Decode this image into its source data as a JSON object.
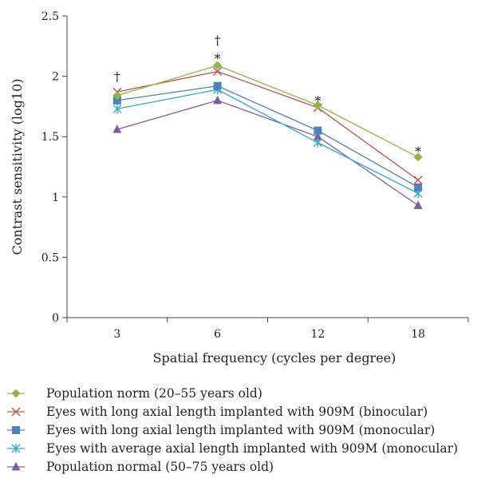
{
  "chart_data": {
    "type": "line",
    "title": "",
    "xlabel": "Spatial frequency (cycles per degree)",
    "ylabel": "Contrast sensitivity (log10)",
    "categories": [
      "3",
      "6",
      "12",
      "18"
    ],
    "ylim": [
      0,
      2.5
    ],
    "yticks": [
      "0",
      "0.5",
      "1",
      "1.5",
      "2",
      "2.5"
    ],
    "grid": false,
    "legend_position": "bottom",
    "series": [
      {
        "name": "Population norm (20–55 years old)",
        "values": [
          1.84,
          2.09,
          1.76,
          1.33
        ],
        "color": "#8fb546",
        "marker": "diamond"
      },
      {
        "name": "Eyes with long axial length implanted with 909M (binocular)",
        "values": [
          1.87,
          2.04,
          1.74,
          1.14
        ],
        "color": "#c0504d",
        "marker": "x"
      },
      {
        "name": "Eyes with long axial length implanted with 909M (monocular)",
        "values": [
          1.8,
          1.92,
          1.55,
          1.08
        ],
        "color": "#4f81bd",
        "marker": "square"
      },
      {
        "name": "Eyes with average axial length implanted with 909M (monocular)",
        "values": [
          1.73,
          1.89,
          1.45,
          1.03
        ],
        "color": "#31a9c4",
        "marker": "asterisk"
      },
      {
        "name": "Population normal (50–75 years old)",
        "values": [
          1.56,
          1.8,
          1.5,
          0.93
        ],
        "color": "#7c5d9e",
        "marker": "triangle"
      }
    ],
    "annotations": [
      {
        "category": "3",
        "y": 2.0,
        "text": "†"
      },
      {
        "category": "6",
        "y": 2.3,
        "text": "†"
      },
      {
        "category": "6",
        "y": 2.15,
        "text": "*"
      },
      {
        "category": "12",
        "y": 1.8,
        "text": "*"
      },
      {
        "category": "18",
        "y": 1.38,
        "text": "*"
      }
    ]
  }
}
